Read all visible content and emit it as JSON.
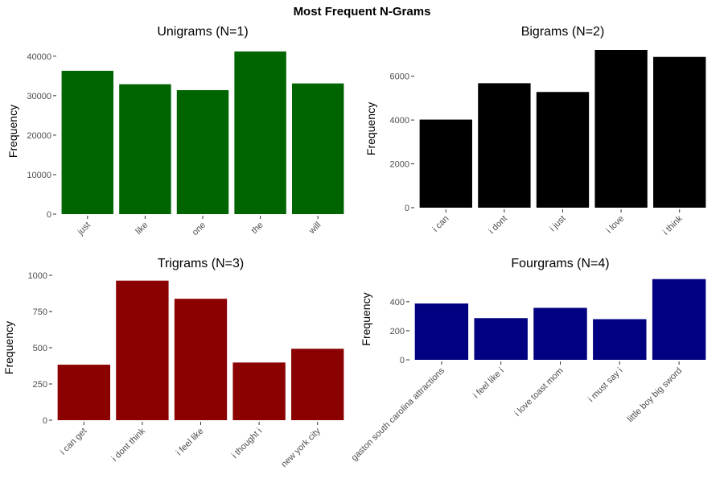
{
  "figure": {
    "title": "Most Frequent N-Grams"
  },
  "chart_data": [
    {
      "type": "bar",
      "title": "Unigrams (N=1)",
      "xlabel": "",
      "ylabel": "Frequency",
      "categories": [
        "just",
        "like",
        "one",
        "the",
        "will"
      ],
      "values": [
        36300,
        32900,
        31400,
        41200,
        33100
      ],
      "ylim": [
        0,
        42000
      ],
      "yticks": [
        0,
        10000,
        20000,
        30000,
        40000
      ],
      "color": "#006400",
      "grid": false
    },
    {
      "type": "bar",
      "title": "Bigrams (N=2)",
      "xlabel": "",
      "ylabel": "Frequency",
      "categories": [
        "i can",
        "i dont",
        "i just",
        "i love",
        "i think"
      ],
      "values": [
        4020,
        5680,
        5280,
        7200,
        6880
      ],
      "ylim": [
        0,
        7200
      ],
      "yticks": [
        0,
        2000,
        4000,
        6000
      ],
      "color": "#000000",
      "grid": false
    },
    {
      "type": "bar",
      "title": "Trigrams (N=3)",
      "xlabel": "",
      "ylabel": "Frequency",
      "categories": [
        "i can get",
        "i dont think",
        "i feel like",
        "i thought i",
        "new york city"
      ],
      "values": [
        383,
        963,
        838,
        398,
        493
      ],
      "ylim": [
        0,
        1000
      ],
      "yticks": [
        0,
        250,
        500,
        750,
        1000
      ],
      "color": "#8B0000",
      "grid": false
    },
    {
      "type": "bar",
      "title": "Fourgrams (N=4)",
      "xlabel": "",
      "ylabel": "Frequency",
      "categories": [
        "gaston south carolina attractions",
        "i feel like i",
        "i love toast mom",
        "i must say i",
        "little boy big sword"
      ],
      "values": [
        388,
        287,
        358,
        280,
        556
      ],
      "ylim": [
        0,
        560
      ],
      "yticks": [
        0,
        200,
        400
      ],
      "color": "#000080",
      "grid": false
    }
  ]
}
